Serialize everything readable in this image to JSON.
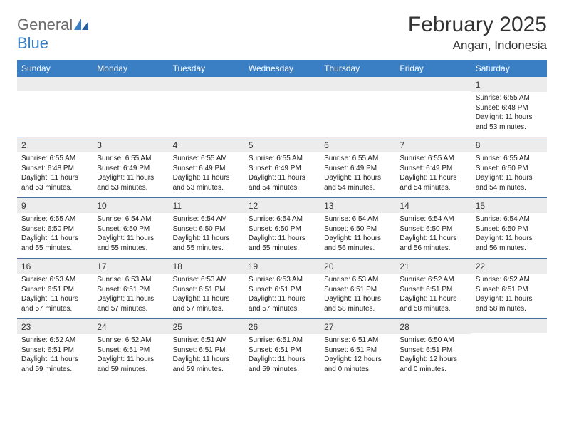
{
  "logo": {
    "word1": "General",
    "word2": "Blue"
  },
  "title": "February 2025",
  "location": "Angan, Indonesia",
  "colors": {
    "header_bg": "#3a7fc4",
    "header_text": "#ffffff",
    "daynum_bg": "#ececec",
    "week_border": "#4a6fa0",
    "logo_gray": "#6b6b6b",
    "logo_blue": "#3a7fc4"
  },
  "day_names": [
    "Sunday",
    "Monday",
    "Tuesday",
    "Wednesday",
    "Thursday",
    "Friday",
    "Saturday"
  ],
  "weeks": [
    [
      {
        "n": "",
        "sr": "",
        "ss": "",
        "dl": ""
      },
      {
        "n": "",
        "sr": "",
        "ss": "",
        "dl": ""
      },
      {
        "n": "",
        "sr": "",
        "ss": "",
        "dl": ""
      },
      {
        "n": "",
        "sr": "",
        "ss": "",
        "dl": ""
      },
      {
        "n": "",
        "sr": "",
        "ss": "",
        "dl": ""
      },
      {
        "n": "",
        "sr": "",
        "ss": "",
        "dl": ""
      },
      {
        "n": "1",
        "sr": "Sunrise: 6:55 AM",
        "ss": "Sunset: 6:48 PM",
        "dl": "Daylight: 11 hours and 53 minutes."
      }
    ],
    [
      {
        "n": "2",
        "sr": "Sunrise: 6:55 AM",
        "ss": "Sunset: 6:48 PM",
        "dl": "Daylight: 11 hours and 53 minutes."
      },
      {
        "n": "3",
        "sr": "Sunrise: 6:55 AM",
        "ss": "Sunset: 6:49 PM",
        "dl": "Daylight: 11 hours and 53 minutes."
      },
      {
        "n": "4",
        "sr": "Sunrise: 6:55 AM",
        "ss": "Sunset: 6:49 PM",
        "dl": "Daylight: 11 hours and 53 minutes."
      },
      {
        "n": "5",
        "sr": "Sunrise: 6:55 AM",
        "ss": "Sunset: 6:49 PM",
        "dl": "Daylight: 11 hours and 54 minutes."
      },
      {
        "n": "6",
        "sr": "Sunrise: 6:55 AM",
        "ss": "Sunset: 6:49 PM",
        "dl": "Daylight: 11 hours and 54 minutes."
      },
      {
        "n": "7",
        "sr": "Sunrise: 6:55 AM",
        "ss": "Sunset: 6:49 PM",
        "dl": "Daylight: 11 hours and 54 minutes."
      },
      {
        "n": "8",
        "sr": "Sunrise: 6:55 AM",
        "ss": "Sunset: 6:50 PM",
        "dl": "Daylight: 11 hours and 54 minutes."
      }
    ],
    [
      {
        "n": "9",
        "sr": "Sunrise: 6:55 AM",
        "ss": "Sunset: 6:50 PM",
        "dl": "Daylight: 11 hours and 55 minutes."
      },
      {
        "n": "10",
        "sr": "Sunrise: 6:54 AM",
        "ss": "Sunset: 6:50 PM",
        "dl": "Daylight: 11 hours and 55 minutes."
      },
      {
        "n": "11",
        "sr": "Sunrise: 6:54 AM",
        "ss": "Sunset: 6:50 PM",
        "dl": "Daylight: 11 hours and 55 minutes."
      },
      {
        "n": "12",
        "sr": "Sunrise: 6:54 AM",
        "ss": "Sunset: 6:50 PM",
        "dl": "Daylight: 11 hours and 55 minutes."
      },
      {
        "n": "13",
        "sr": "Sunrise: 6:54 AM",
        "ss": "Sunset: 6:50 PM",
        "dl": "Daylight: 11 hours and 56 minutes."
      },
      {
        "n": "14",
        "sr": "Sunrise: 6:54 AM",
        "ss": "Sunset: 6:50 PM",
        "dl": "Daylight: 11 hours and 56 minutes."
      },
      {
        "n": "15",
        "sr": "Sunrise: 6:54 AM",
        "ss": "Sunset: 6:50 PM",
        "dl": "Daylight: 11 hours and 56 minutes."
      }
    ],
    [
      {
        "n": "16",
        "sr": "Sunrise: 6:53 AM",
        "ss": "Sunset: 6:51 PM",
        "dl": "Daylight: 11 hours and 57 minutes."
      },
      {
        "n": "17",
        "sr": "Sunrise: 6:53 AM",
        "ss": "Sunset: 6:51 PM",
        "dl": "Daylight: 11 hours and 57 minutes."
      },
      {
        "n": "18",
        "sr": "Sunrise: 6:53 AM",
        "ss": "Sunset: 6:51 PM",
        "dl": "Daylight: 11 hours and 57 minutes."
      },
      {
        "n": "19",
        "sr": "Sunrise: 6:53 AM",
        "ss": "Sunset: 6:51 PM",
        "dl": "Daylight: 11 hours and 57 minutes."
      },
      {
        "n": "20",
        "sr": "Sunrise: 6:53 AM",
        "ss": "Sunset: 6:51 PM",
        "dl": "Daylight: 11 hours and 58 minutes."
      },
      {
        "n": "21",
        "sr": "Sunrise: 6:52 AM",
        "ss": "Sunset: 6:51 PM",
        "dl": "Daylight: 11 hours and 58 minutes."
      },
      {
        "n": "22",
        "sr": "Sunrise: 6:52 AM",
        "ss": "Sunset: 6:51 PM",
        "dl": "Daylight: 11 hours and 58 minutes."
      }
    ],
    [
      {
        "n": "23",
        "sr": "Sunrise: 6:52 AM",
        "ss": "Sunset: 6:51 PM",
        "dl": "Daylight: 11 hours and 59 minutes."
      },
      {
        "n": "24",
        "sr": "Sunrise: 6:52 AM",
        "ss": "Sunset: 6:51 PM",
        "dl": "Daylight: 11 hours and 59 minutes."
      },
      {
        "n": "25",
        "sr": "Sunrise: 6:51 AM",
        "ss": "Sunset: 6:51 PM",
        "dl": "Daylight: 11 hours and 59 minutes."
      },
      {
        "n": "26",
        "sr": "Sunrise: 6:51 AM",
        "ss": "Sunset: 6:51 PM",
        "dl": "Daylight: 11 hours and 59 minutes."
      },
      {
        "n": "27",
        "sr": "Sunrise: 6:51 AM",
        "ss": "Sunset: 6:51 PM",
        "dl": "Daylight: 12 hours and 0 minutes."
      },
      {
        "n": "28",
        "sr": "Sunrise: 6:50 AM",
        "ss": "Sunset: 6:51 PM",
        "dl": "Daylight: 12 hours and 0 minutes."
      },
      {
        "n": "",
        "sr": "",
        "ss": "",
        "dl": ""
      }
    ]
  ]
}
